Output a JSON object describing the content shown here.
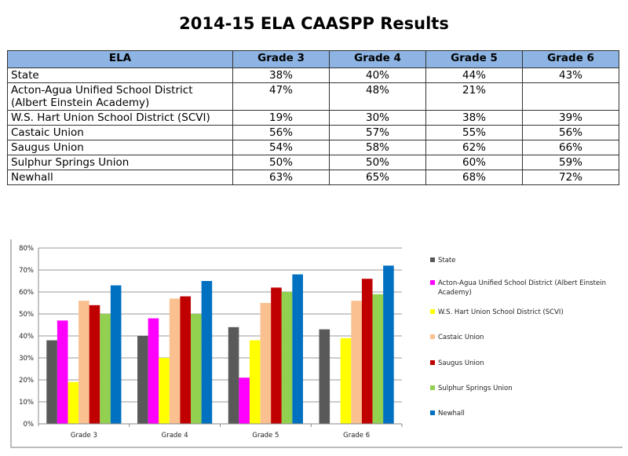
{
  "title": "2014-15 ELA CAASPP Results",
  "table": {
    "headers": [
      "ELA",
      "Grade 3",
      "Grade 4",
      "Grade 5",
      "Grade 6"
    ],
    "rows": [
      [
        "State",
        "38%",
        "40%",
        "44%",
        "43%"
      ],
      [
        "Acton-Agua Unified School District (Albert Einstein Academy)",
        "47%",
        "48%",
        "21%",
        ""
      ],
      [
        "W.S. Hart Union School District (SCVI)",
        "19%",
        "30%",
        "38%",
        "39%"
      ],
      [
        "Castaic Union",
        "56%",
        "57%",
        "55%",
        "56%"
      ],
      [
        "Saugus Union",
        "54%",
        "58%",
        "62%",
        "66%"
      ],
      [
        "Sulphur Springs Union",
        "50%",
        "50%",
        "60%",
        "59%"
      ],
      [
        "Newhall",
        "63%",
        "65%",
        "68%",
        "72%"
      ]
    ]
  },
  "chart_data": {
    "type": "bar",
    "categories": [
      "Grade 3",
      "Grade 4",
      "Grade 5",
      "Grade 6"
    ],
    "ylim": [
      0,
      80
    ],
    "yticks": [
      "0%",
      "10%",
      "20%",
      "30%",
      "40%",
      "50%",
      "60%",
      "70%",
      "80%"
    ],
    "grid": true,
    "legend_position": "right",
    "series": [
      {
        "name": "State",
        "color": "#595959",
        "values": [
          38,
          40,
          44,
          43
        ]
      },
      {
        "name": "Acton-Agua Unified School District (Albert Einstein Academy)",
        "color": "#ff00ff",
        "values": [
          47,
          48,
          21,
          null
        ]
      },
      {
        "name": "W.S. Hart Union School District (SCVI)",
        "color": "#ffff00",
        "values": [
          19,
          30,
          38,
          39
        ]
      },
      {
        "name": "Castaic Union",
        "color": "#fac090",
        "values": [
          56,
          57,
          55,
          56
        ]
      },
      {
        "name": "Saugus Union",
        "color": "#c00000",
        "values": [
          54,
          58,
          62,
          66
        ]
      },
      {
        "name": "Sulphur Springs Union",
        "color": "#92d050",
        "values": [
          50,
          50,
          60,
          59
        ]
      },
      {
        "name": "Newhall",
        "color": "#0070c0",
        "values": [
          63,
          65,
          68,
          72
        ]
      }
    ]
  }
}
